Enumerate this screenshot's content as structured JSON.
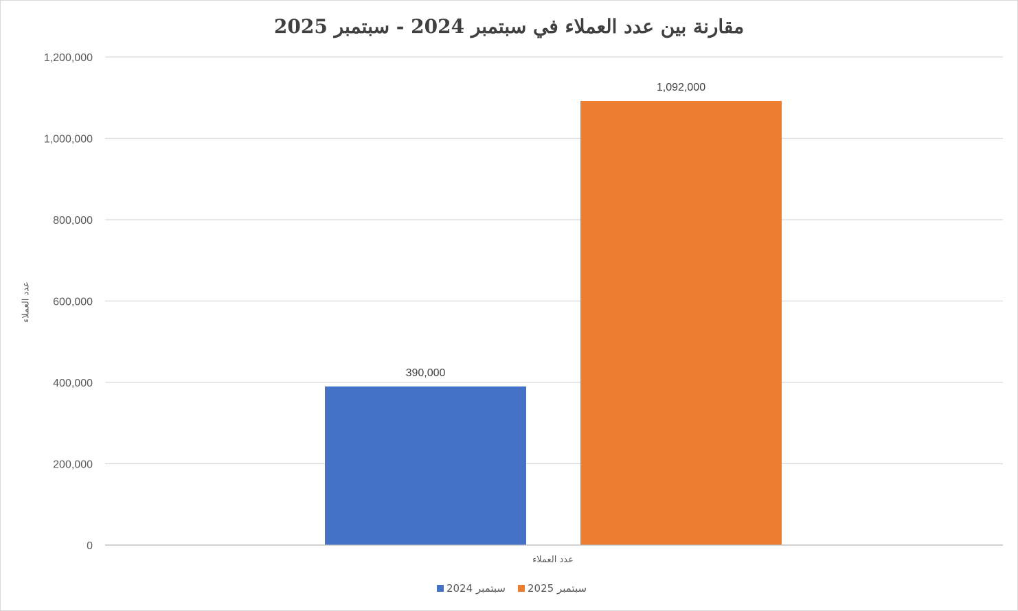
{
  "chart_data": {
    "type": "bar",
    "title": "مقارنة بين عدد العملاء في سبتمبر 2024 - سبتمبر 2025",
    "xlabel": "",
    "ylabel": "عدد العملاء",
    "categories": [
      "عدد العملاء"
    ],
    "ylim": [
      0,
      1200000
    ],
    "yticks": [
      "0",
      "200,000",
      "400,000",
      "600,000",
      "800,000",
      "1,000,000",
      "1,200,000"
    ],
    "ytick_values": [
      0,
      200000,
      400000,
      600000,
      800000,
      1000000,
      1200000
    ],
    "grid": true,
    "legend_position": "bottom",
    "series": [
      {
        "name": "سبتمبر 2024",
        "values": [
          390000
        ],
        "label": "390,000",
        "color": "#4472C4"
      },
      {
        "name": "سبتمبر 2025",
        "values": [
          1092000
        ],
        "label": "1,092,000",
        "color": "#ED7D31"
      }
    ]
  }
}
